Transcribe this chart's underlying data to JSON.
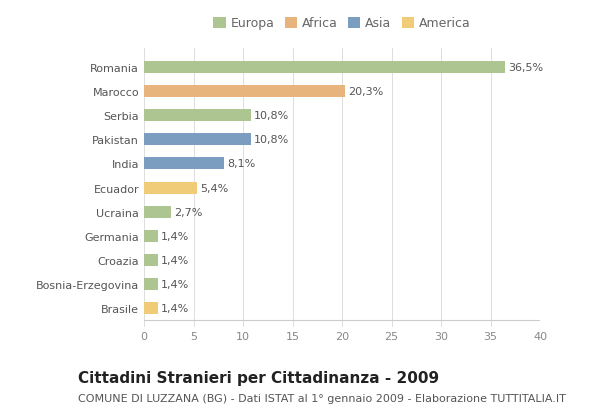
{
  "countries": [
    "Romania",
    "Marocco",
    "Serbia",
    "Pakistan",
    "India",
    "Ecuador",
    "Ucraina",
    "Germania",
    "Croazia",
    "Bosnia-Erzegovina",
    "Brasile"
  ],
  "values": [
    36.5,
    20.3,
    10.8,
    10.8,
    8.1,
    5.4,
    2.7,
    1.4,
    1.4,
    1.4,
    1.4
  ],
  "labels": [
    "36,5%",
    "20,3%",
    "10,8%",
    "10,8%",
    "8,1%",
    "5,4%",
    "2,7%",
    "1,4%",
    "1,4%",
    "1,4%",
    "1,4%"
  ],
  "colors": [
    "#adc590",
    "#e8b47e",
    "#adc590",
    "#7b9ec0",
    "#7b9ec0",
    "#f0cc78",
    "#adc590",
    "#adc590",
    "#adc590",
    "#adc590",
    "#f0cc78"
  ],
  "legend_labels": [
    "Europa",
    "Africa",
    "Asia",
    "America"
  ],
  "legend_colors": [
    "#adc590",
    "#e8b47e",
    "#7b9ec0",
    "#f0cc78"
  ],
  "title": "Cittadini Stranieri per Cittadinanza - 2009",
  "subtitle": "COMUNE DI LUZZANA (BG) - Dati ISTAT al 1° gennaio 2009 - Elaborazione TUTTITALIA.IT",
  "xlim": [
    0,
    40
  ],
  "xticks": [
    0,
    5,
    10,
    15,
    20,
    25,
    30,
    35,
    40
  ],
  "background_color": "#ffffff",
  "bar_height": 0.5,
  "title_fontsize": 11,
  "subtitle_fontsize": 8,
  "label_fontsize": 8,
  "tick_fontsize": 8,
  "legend_fontsize": 9
}
